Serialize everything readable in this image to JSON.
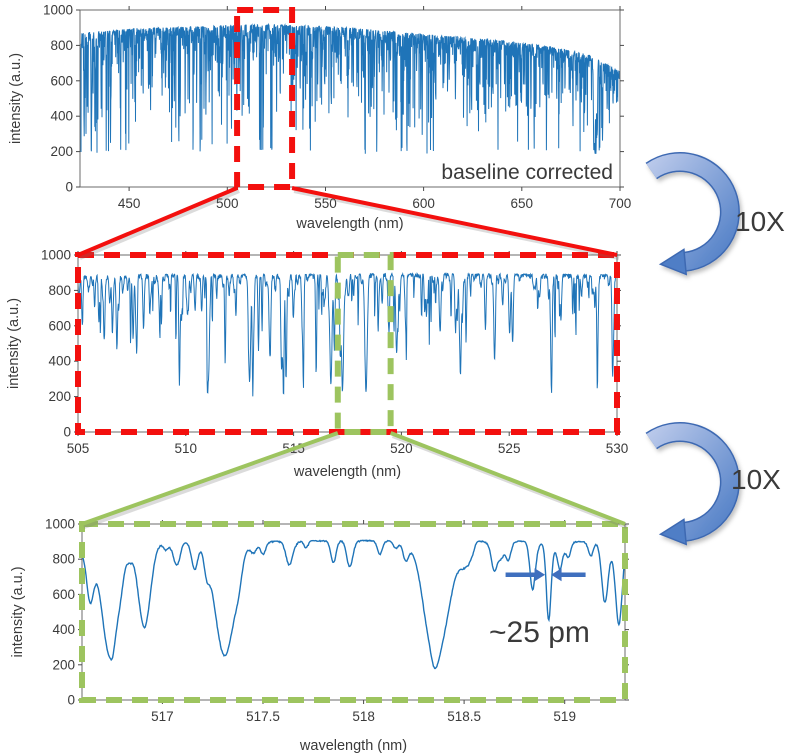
{
  "annotations": {
    "zoom_labels": [
      "10X",
      "10X"
    ]
  },
  "colors": {
    "spectrum_blue": "#1f74b8",
    "zoom_red": "#f3100e",
    "zoom_green": "#9dc45f",
    "arrow_fill_light": "#b9c8ea",
    "arrow_fill_dark": "#4f7ec6",
    "arrow_outline": "#3e69b2",
    "measure_arrow": "#3f6fbe",
    "annotation_gray": "#6e6e6e",
    "text_black": "#111111"
  },
  "chart_data": [
    {
      "id": "full-spectrum",
      "type": "line",
      "title": "",
      "xlabel": "wavelength (nm)",
      "ylabel": "intensity (a.u.)",
      "xlim": [
        425,
        700
      ],
      "ylim": [
        0,
        1000
      ],
      "xticks": [
        450,
        500,
        550,
        600,
        650,
        700
      ],
      "yticks": [
        0,
        200,
        400,
        600,
        800,
        1000
      ],
      "grid": false,
      "line_color": "#1f74b8",
      "line_width": 1,
      "annotation": "baseline corrected",
      "highlight_box": {
        "x0": 505,
        "x1": 533,
        "color": "#f3100e",
        "style": "dashed"
      },
      "spectrum": {
        "description": "solar absorption spectrum, baseline corrected; continuum minus Gaussian Fraunhofer lines",
        "line_format": [
          "center_nm",
          "depth",
          "sigma_nm"
        ],
        "continuum": [
          [
            425,
            868
          ],
          [
            450,
            893
          ],
          [
            475,
            903
          ],
          [
            500,
            912
          ],
          [
            520,
            918
          ],
          [
            540,
            912
          ],
          [
            560,
            901
          ],
          [
            580,
            883
          ],
          [
            600,
            863
          ],
          [
            620,
            846
          ],
          [
            640,
            827
          ],
          [
            658,
            803
          ],
          [
            672,
            778
          ],
          [
            683,
            752
          ],
          [
            690,
            712
          ],
          [
            695,
            685
          ],
          [
            700,
            652
          ]
        ],
        "major_lines": [
          [
            427.2,
            420,
            0.08
          ],
          [
            430.8,
            620,
            0.18
          ],
          [
            434.05,
            560,
            0.1
          ],
          [
            438.35,
            470,
            0.09
          ],
          [
            440.5,
            380,
            0.08
          ],
          [
            445.5,
            400,
            0.08
          ],
          [
            452.9,
            360,
            0.08
          ],
          [
            466.8,
            380,
            0.08
          ],
          [
            470.3,
            330,
            0.08
          ],
          [
            486.13,
            640,
            0.1
          ],
          [
            489.1,
            350,
            0.08
          ],
          [
            495.76,
            380,
            0.08
          ],
          [
            516.73,
            630,
            0.07
          ],
          [
            517.27,
            650,
            0.07
          ],
          [
            518.36,
            660,
            0.07
          ],
          [
            522.7,
            400,
            0.07
          ],
          [
            526.95,
            450,
            0.07
          ],
          [
            532.8,
            380,
            0.08
          ],
          [
            537.1,
            340,
            0.08
          ],
          [
            543.0,
            300,
            0.08
          ],
          [
            549.6,
            330,
            0.08
          ],
          [
            552.8,
            380,
            0.08
          ],
          [
            558.0,
            320,
            0.08
          ],
          [
            561.0,
            290,
            0.08
          ],
          [
            570.0,
            300,
            0.08
          ],
          [
            576.0,
            270,
            0.08
          ],
          [
            588.99,
            640,
            0.09
          ],
          [
            589.59,
            560,
            0.08
          ],
          [
            610.3,
            280,
            0.08
          ],
          [
            612.2,
            300,
            0.08
          ],
          [
            616.2,
            340,
            0.08
          ],
          [
            627.0,
            290,
            0.08
          ],
          [
            630.2,
            300,
            0.08
          ],
          [
            634.7,
            270,
            0.08
          ],
          [
            644.0,
            290,
            0.08
          ],
          [
            649.9,
            310,
            0.08
          ],
          [
            656.28,
            590,
            0.1
          ],
          [
            660.8,
            260,
            0.08
          ],
          [
            667.8,
            290,
            0.08
          ],
          [
            672.0,
            250,
            0.08
          ],
          [
            676.0,
            270,
            0.08
          ],
          [
            686.7,
            500,
            0.25
          ],
          [
            687.2,
            460,
            0.18
          ],
          [
            687.8,
            480,
            0.2
          ],
          [
            688.4,
            420,
            0.18
          ],
          [
            691.0,
            300,
            0.15
          ]
        ],
        "random_lines": {
          "count": 1400,
          "seed": 7,
          "width_range": [
            0.02,
            0.06
          ],
          "depth_range": [
            25,
            540
          ],
          "depth_power": 3.2,
          "blue_bias": 1.3,
          "red_bias": 0.85
        },
        "noise": {
          "seed": 11,
          "amplitude": 60
        },
        "floor": 185,
        "samples": 2600
      }
    },
    {
      "id": "zoom-505-530",
      "type": "line",
      "title": "",
      "xlabel": "wavelength (nm)",
      "ylabel": "intensity (a.u.)",
      "xlim": [
        505,
        530
      ],
      "ylim": [
        0,
        1000
      ],
      "xticks": [
        505,
        510,
        515,
        520,
        525,
        530
      ],
      "yticks": [
        0,
        200,
        400,
        600,
        800,
        1000
      ],
      "grid": false,
      "line_color": "#1f74b8",
      "line_width": 1,
      "border": {
        "color": "#f3100e",
        "style": "dashed"
      },
      "highlight_box": {
        "x0": 517.05,
        "x1": 519.5,
        "color": "#9dc45f",
        "style": "dashed"
      },
      "spectrum": {
        "description": "10X zoom of 505-530 nm region incl. Mg b triplet",
        "line_format": [
          "center_nm",
          "depth",
          "sigma_nm"
        ],
        "continuum": [
          [
            505,
            886
          ],
          [
            510,
            893
          ],
          [
            515,
            890
          ],
          [
            520,
            896
          ],
          [
            525,
            893
          ],
          [
            530,
            888
          ]
        ],
        "major_lines": [
          [
            505.2,
            280,
            0.03
          ],
          [
            506.8,
            340,
            0.035
          ],
          [
            508.04,
            310,
            0.03
          ],
          [
            509.8,
            260,
            0.03
          ],
          [
            511.04,
            370,
            0.035
          ],
          [
            513.0,
            280,
            0.03
          ],
          [
            513.9,
            440,
            0.04
          ],
          [
            515.4,
            300,
            0.03
          ],
          [
            516.73,
            625,
            0.05
          ],
          [
            516.89,
            390,
            0.03
          ],
          [
            517.16,
            310,
            0.025
          ],
          [
            517.27,
            650,
            0.05
          ],
          [
            518.36,
            665,
            0.055
          ],
          [
            518.92,
            280,
            0.02
          ],
          [
            519.4,
            250,
            0.025
          ],
          [
            520.2,
            300,
            0.03
          ],
          [
            521.8,
            320,
            0.035
          ],
          [
            522.72,
            430,
            0.04
          ],
          [
            523.9,
            280,
            0.03
          ],
          [
            525.02,
            340,
            0.035
          ],
          [
            526.95,
            450,
            0.04
          ],
          [
            527.4,
            260,
            0.03
          ],
          [
            529.1,
            340,
            0.035
          ],
          [
            529.83,
            300,
            0.035
          ]
        ],
        "random_lines": {
          "count": 230,
          "seed": 5,
          "width_range": [
            0.012,
            0.035
          ],
          "depth_range": [
            25,
            430
          ],
          "depth_power": 2.6
        },
        "noise": {
          "seed": 9,
          "amplitude": 28
        },
        "floor": 200,
        "samples": 1500
      }
    },
    {
      "id": "zoom-516-519",
      "type": "line",
      "title": "",
      "xlabel": "wavelength (nm)",
      "ylabel": "intensity (a.u.)",
      "xlim": [
        516.6,
        519.3
      ],
      "ylim": [
        0,
        1000
      ],
      "xticks": [
        517,
        517.5,
        518,
        518.5,
        519
      ],
      "yticks": [
        0,
        200,
        400,
        600,
        800,
        1000
      ],
      "grid": false,
      "line_color": "#1f74b8",
      "line_width": 1.4,
      "border": {
        "color": "#9dc45f",
        "style": "dashed"
      },
      "measure": {
        "label": "~25 pm",
        "center": 518.92,
        "y_value": 712
      },
      "spectrum": {
        "description": "100X zoom, resolved lines around Mg b triplet; narrow line near 518.92 nm has ~25 pm width",
        "line_format": [
          "center_nm",
          "depth",
          "sigma_nm"
        ],
        "continuum": [
          [
            516.6,
            880
          ],
          [
            516.9,
            895
          ],
          [
            517.4,
            900
          ],
          [
            517.9,
            908
          ],
          [
            518.4,
            905
          ],
          [
            518.9,
            903
          ],
          [
            519.3,
            898
          ]
        ],
        "major_lines": [
          [
            516.64,
            300,
            0.018
          ],
          [
            516.74,
            640,
            0.04
          ],
          [
            516.91,
            480,
            0.03
          ],
          [
            517.07,
            90,
            0.015
          ],
          [
            517.16,
            150,
            0.015
          ],
          [
            517.22,
            110,
            0.013
          ],
          [
            517.31,
            645,
            0.048
          ],
          [
            517.5,
            70,
            0.013
          ],
          [
            517.63,
            130,
            0.016
          ],
          [
            517.85,
            125,
            0.013
          ],
          [
            517.93,
            110,
            0.013
          ],
          [
            518.08,
            70,
            0.012
          ],
          [
            518.21,
            100,
            0.014
          ],
          [
            518.36,
            680,
            0.055
          ],
          [
            518.5,
            120,
            0.025
          ],
          [
            518.65,
            160,
            0.014
          ],
          [
            518.72,
            70,
            0.011
          ],
          [
            518.84,
            260,
            0.013
          ],
          [
            518.92,
            390,
            0.011
          ],
          [
            519.02,
            70,
            0.011
          ],
          [
            519.13,
            80,
            0.012
          ],
          [
            519.2,
            340,
            0.016
          ],
          [
            519.27,
            420,
            0.016
          ]
        ],
        "random_lines": {
          "count": 40,
          "seed": 3,
          "width_range": [
            0.008,
            0.02
          ],
          "depth_range": [
            10,
            60
          ],
          "depth_power": 1.5
        },
        "noise": {
          "seed": 4,
          "amplitude": 7
        },
        "floor": 80,
        "samples": 800
      }
    }
  ]
}
